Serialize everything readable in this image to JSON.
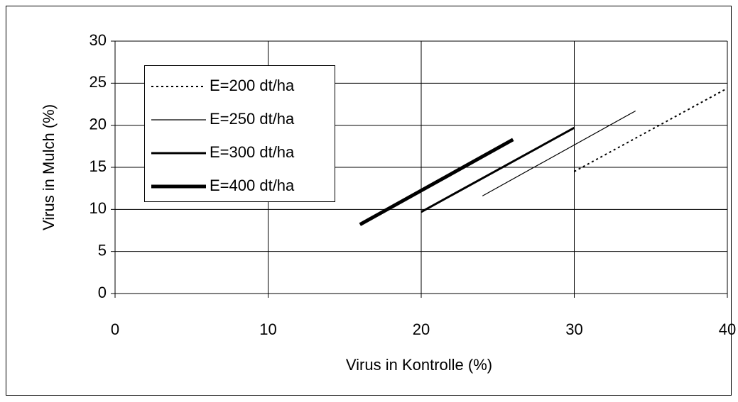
{
  "chart_data": {
    "type": "line",
    "xlabel": "Virus in Kontrolle (%)",
    "ylabel": "Virus in Mulch (%)",
    "xlim": [
      0,
      40
    ],
    "xticks": [
      0,
      10,
      20,
      30,
      40
    ],
    "ylim": [
      0,
      30
    ],
    "yticks": [
      0,
      5,
      10,
      15,
      20,
      25,
      30
    ],
    "grid": true,
    "legend": "upper left",
    "series": [
      {
        "name": "E=200 dt/ha",
        "color": "#000000",
        "width": 2,
        "dash": "3,4",
        "x": [
          30,
          40
        ],
        "values": [
          14.5,
          24.4
        ]
      },
      {
        "name": "E=250 dt/ha",
        "color": "#000000",
        "width": 1.2,
        "dash": "none",
        "x": [
          24,
          34
        ],
        "values": [
          11.6,
          21.7
        ]
      },
      {
        "name": "E=300 dt/ha",
        "color": "#000000",
        "width": 3,
        "dash": "none",
        "x": [
          20,
          30
        ],
        "values": [
          9.7,
          19.7
        ]
      },
      {
        "name": "E=400 dt/ha",
        "color": "#000000",
        "width": 5,
        "dash": "none",
        "x": [
          16,
          26
        ],
        "values": [
          8.2,
          18.3
        ]
      }
    ]
  }
}
